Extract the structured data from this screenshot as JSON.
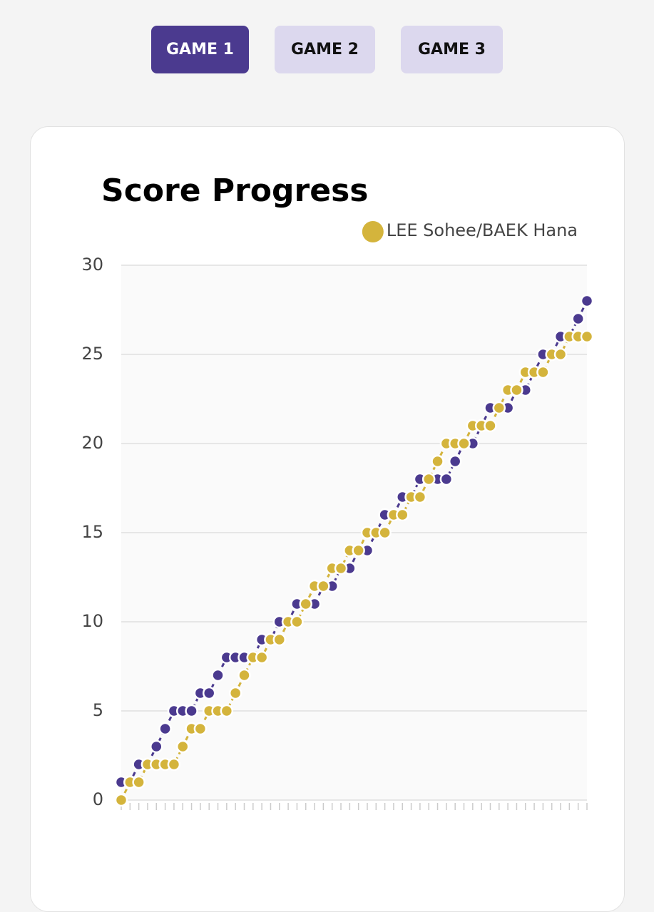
{
  "tabs": [
    "GAME 1",
    "GAME 2",
    "GAME 3"
  ],
  "chart_data": {
    "type": "line",
    "title": "Score Progress",
    "x": [
      0,
      1,
      2,
      3,
      4,
      5,
      6,
      7,
      8,
      9,
      10,
      11,
      12,
      13,
      14,
      15,
      16,
      17,
      18,
      19,
      20,
      21,
      22,
      23,
      24,
      25,
      26,
      27,
      28,
      29,
      30,
      31,
      32,
      33,
      34,
      35,
      36,
      37,
      38,
      39,
      40,
      41,
      42,
      43,
      44,
      45,
      46,
      47,
      48,
      49,
      50,
      51,
      52,
      53
    ],
    "xlim": [
      0,
      53
    ],
    "ylim": [
      0,
      30
    ],
    "yticks": [
      0,
      5,
      10,
      15,
      20,
      25,
      30
    ],
    "grid": true,
    "series": [
      {
        "color": "#4b3a8f",
        "values": [
          1,
          1,
          2,
          2,
          3,
          4,
          5,
          5,
          5,
          6,
          6,
          7,
          8,
          8,
          8,
          8,
          9,
          9,
          10,
          10,
          11,
          11,
          11,
          12,
          12,
          13,
          13,
          14,
          14,
          15,
          16,
          16,
          17,
          17,
          18,
          18,
          18,
          18,
          19,
          20,
          20,
          21,
          22,
          22,
          22,
          23,
          23,
          24,
          25,
          25,
          26,
          26,
          27,
          28
        ]
      },
      {
        "name": "LEE Sohee/BAEK Hana",
        "color": "#d4b43c",
        "values": [
          0,
          1,
          1,
          2,
          2,
          2,
          2,
          3,
          4,
          4,
          5,
          5,
          5,
          6,
          7,
          8,
          8,
          9,
          9,
          10,
          10,
          11,
          12,
          12,
          13,
          13,
          14,
          14,
          15,
          15,
          15,
          16,
          16,
          17,
          17,
          18,
          19,
          20,
          20,
          20,
          21,
          21,
          21,
          22,
          23,
          23,
          24,
          24,
          24,
          25,
          25,
          26,
          26,
          26
        ]
      }
    ]
  }
}
